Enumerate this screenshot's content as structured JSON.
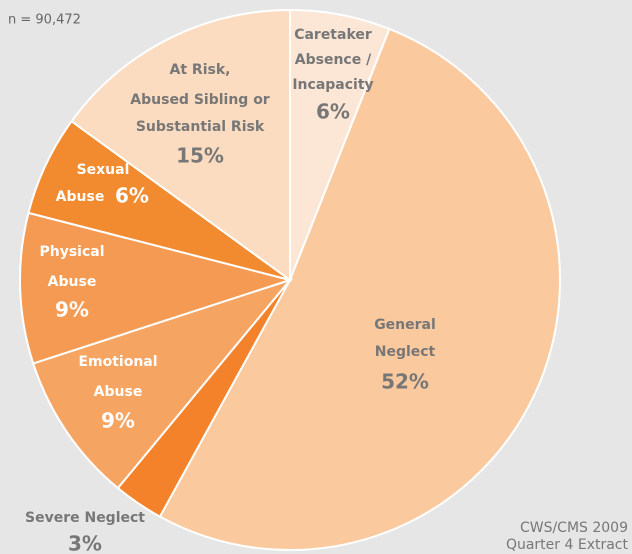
{
  "chart_data": {
    "type": "pie",
    "note": "n = 90,472",
    "source": "CWS/CMS 2009\nQuarter 4 Extract",
    "categories": [
      "Caretaker\nAbsence /\nIncapacity",
      "General\nNeglect",
      "Severe Neglect",
      "Emotional\nAbuse",
      "Physical\nAbuse",
      "Sexual\nAbuse",
      "At Risk,\nAbused Sibling or\nSubstantial Risk"
    ],
    "values": [
      6,
      52,
      3,
      9,
      9,
      6,
      15
    ],
    "value_labels": [
      "6%",
      "52%",
      "3%",
      "9%",
      "9%",
      "6%",
      "15%"
    ],
    "colors": [
      "#fce6d6",
      "#fbc99e",
      "#f4822a",
      "#f6a462",
      "#f59a52",
      "#f28a30",
      "#fcdcc0"
    ]
  }
}
